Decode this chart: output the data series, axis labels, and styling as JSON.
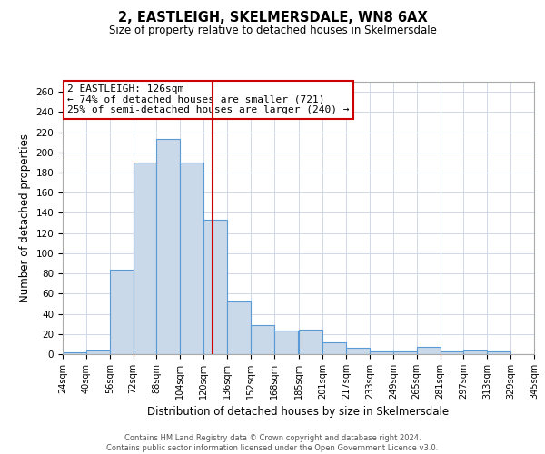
{
  "title": "2, EASTLEIGH, SKELMERSDALE, WN8 6AX",
  "subtitle": "Size of property relative to detached houses in Skelmersdale",
  "xlabel": "Distribution of detached houses by size in Skelmersdale",
  "ylabel": "Number of detached properties",
  "bin_labels": [
    "24sqm",
    "40sqm",
    "56sqm",
    "72sqm",
    "88sqm",
    "104sqm",
    "120sqm",
    "136sqm",
    "152sqm",
    "168sqm",
    "185sqm",
    "201sqm",
    "217sqm",
    "233sqm",
    "249sqm",
    "265sqm",
    "281sqm",
    "297sqm",
    "313sqm",
    "329sqm",
    "345sqm"
  ],
  "bin_edges": [
    24,
    40,
    56,
    72,
    88,
    104,
    120,
    136,
    152,
    168,
    185,
    201,
    217,
    233,
    249,
    265,
    281,
    297,
    313,
    329,
    345
  ],
  "bar_heights": [
    2,
    4,
    84,
    190,
    213,
    190,
    133,
    52,
    29,
    23,
    24,
    12,
    6,
    3,
    3,
    7,
    3,
    4,
    3,
    0
  ],
  "bar_color": "#c9d9ea",
  "bar_edgecolor": "#5b9bd5",
  "ylim": [
    0,
    270
  ],
  "yticks": [
    0,
    20,
    40,
    60,
    80,
    100,
    120,
    140,
    160,
    180,
    200,
    220,
    240,
    260
  ],
  "vline_x": 126,
  "vline_color": "#cc0000",
  "annotation_title": "2 EASTLEIGH: 126sqm",
  "annotation_line1": "← 74% of detached houses are smaller (721)",
  "annotation_line2": "25% of semi-detached houses are larger (240) →",
  "annotation_box_edgecolor": "#cc0000",
  "footer_line1": "Contains HM Land Registry data © Crown copyright and database right 2024.",
  "footer_line2": "Contains public sector information licensed under the Open Government Licence v3.0.",
  "background_color": "#ffffff",
  "grid_color": "#d0d8e8"
}
